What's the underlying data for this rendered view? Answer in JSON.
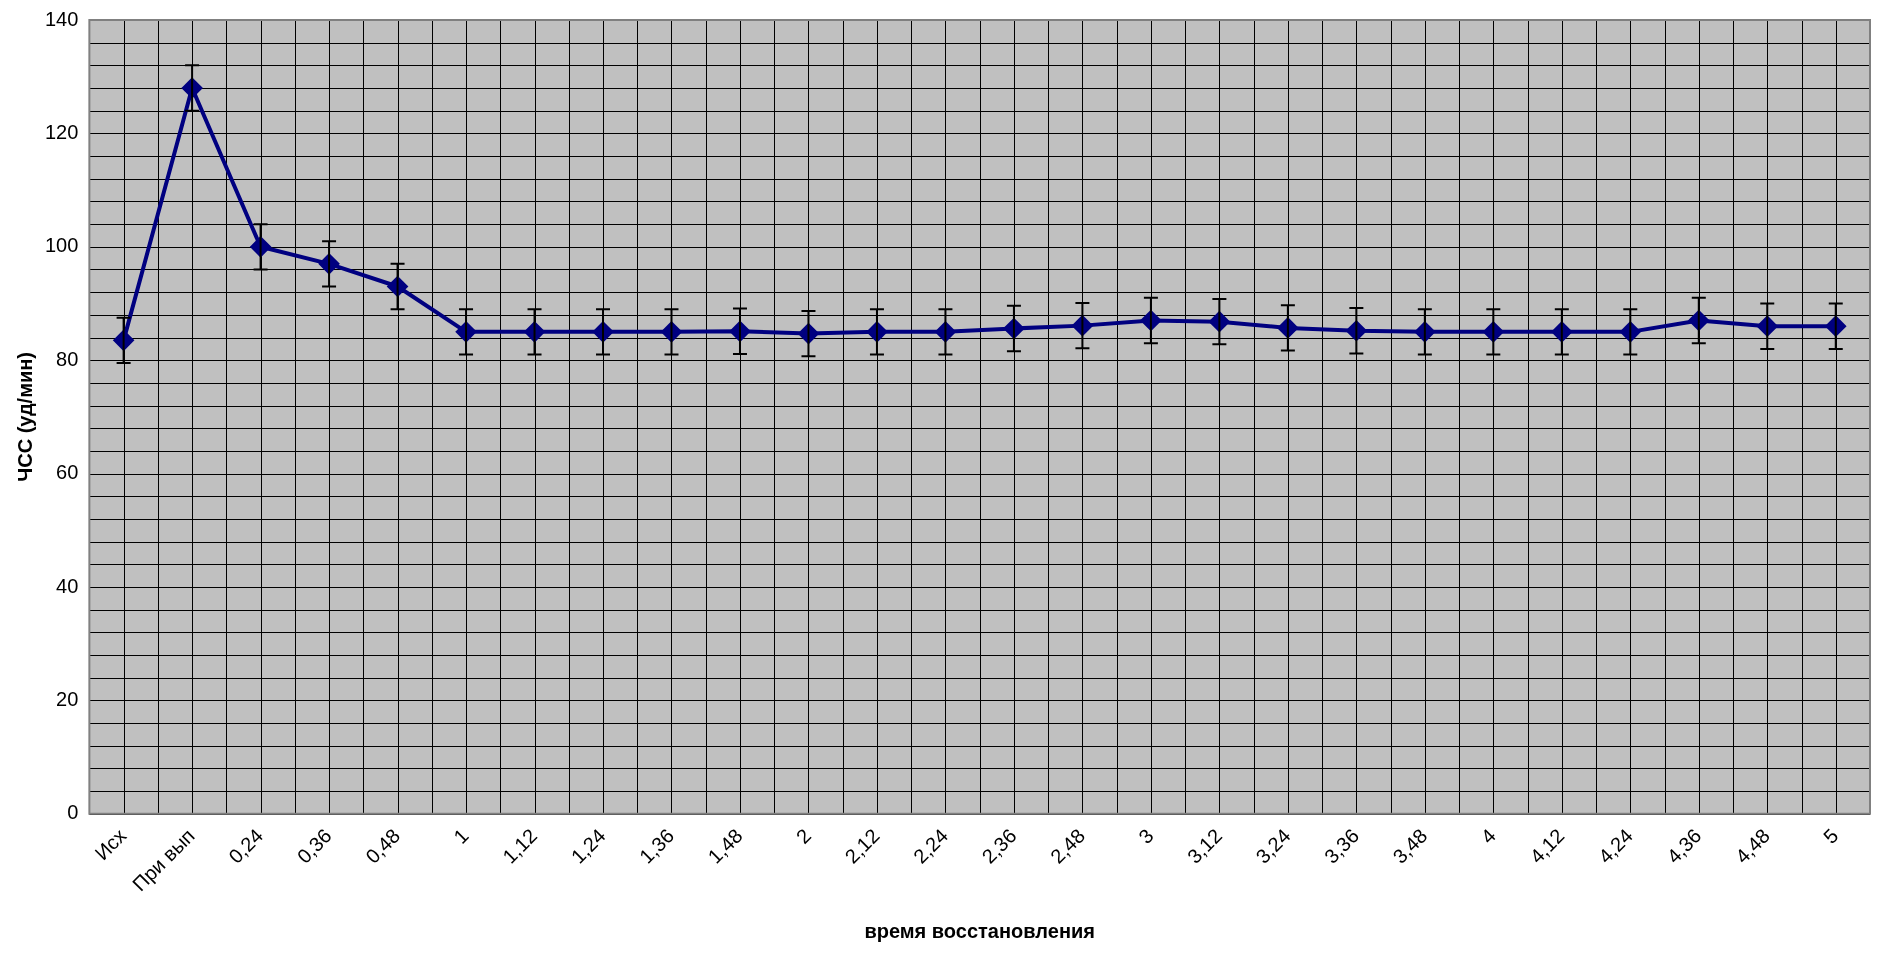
{
  "chart_data": {
    "type": "line",
    "xlabel": "время восстановления",
    "ylabel": "ЧСС (уд/мин)",
    "categories": [
      "Исх",
      "При вып",
      "0,24",
      "0,36",
      "0,48",
      "1",
      "1,12",
      "1,24",
      "1,36",
      "1,48",
      "2",
      "2,12",
      "2,24",
      "2,36",
      "2,48",
      "3",
      "3,12",
      "3,24",
      "3,36",
      "3,48",
      "4",
      "4,12",
      "4,24",
      "4,36",
      "4,48",
      "5"
    ],
    "series": [
      {
        "color": "#000080",
        "values": [
          83.5,
          128,
          100,
          97,
          93,
          85,
          85,
          85,
          85,
          85.1,
          84.7,
          85,
          85,
          85.6,
          86.1,
          87,
          86.8,
          85.7,
          85.2,
          85,
          85,
          85,
          85,
          87,
          86,
          86
        ],
        "errors": [
          4,
          4,
          4,
          4,
          4,
          4,
          4,
          4,
          4,
          4,
          4,
          4,
          4,
          4,
          4,
          4,
          4,
          4,
          4,
          4,
          4,
          4,
          4,
          4,
          4,
          4
        ]
      }
    ],
    "ylim": [
      0,
      140
    ],
    "yticks": [
      0,
      20,
      40,
      60,
      80,
      100,
      120,
      140
    ],
    "grid": true,
    "legend": false,
    "marker": "diamond",
    "line_style": "solid"
  }
}
